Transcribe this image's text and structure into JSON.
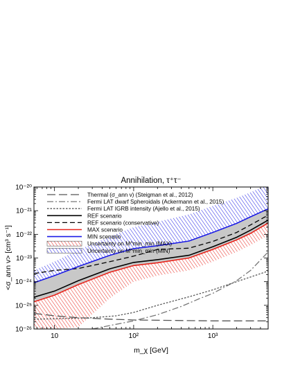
{
  "chart_data": {
    "type": "line",
    "title": "Annihilation, τ⁺τ⁻",
    "xlabel": "m_χ [GeV]",
    "ylabel": "<σ_ann v> [cm³ s⁻¹]",
    "x_scale": "log",
    "y_scale": "log",
    "xlim": [
      5.5,
      5000
    ],
    "ylim": [
      1e-26,
      1e-20
    ],
    "x_ticks": [
      {
        "value": 10,
        "label": "10"
      },
      {
        "value": 100,
        "label": "10²"
      },
      {
        "value": 1000,
        "label": "10³"
      }
    ],
    "y_ticks": [
      {
        "value": 1e-26,
        "label": "10⁻²⁶"
      },
      {
        "value": 1e-25,
        "label": "10⁻²⁵"
      },
      {
        "value": 1e-24,
        "label": "10⁻²⁴"
      },
      {
        "value": 1e-23,
        "label": "10⁻²³"
      },
      {
        "value": 1e-22,
        "label": "10⁻²²"
      },
      {
        "value": 1e-21,
        "label": "10⁻²¹"
      },
      {
        "value": 1e-20,
        "label": "10⁻²⁰"
      }
    ],
    "grid": false,
    "legend_position": "top-left",
    "series": [
      {
        "name": "Thermal (σ_ann v) (Steigman et al., 2012)",
        "style": "long-dash",
        "color": "#555555",
        "x": [
          5.5,
          10,
          20,
          50,
          100,
          300,
          1000,
          5000
        ],
        "y": [
          4.6e-26,
          3.6e-26,
          3e-26,
          2.6e-26,
          2.4e-26,
          2.3e-26,
          2.2e-26,
          2.2e-26
        ]
      },
      {
        "name": "Fermi LAT dwarf Spheroidals (Ackermann et al., 2015)",
        "style": "dash-dot",
        "color": "#777777",
        "x": [
          30,
          50,
          100,
          200,
          400,
          700,
          1000,
          2000,
          3000,
          5000
        ],
        "y": [
          1e-26,
          1.4e-26,
          2.2e-26,
          4e-26,
          9e-26,
          2e-25,
          3.2e-25,
          1.1e-24,
          3e-24,
          1.8e-23
        ]
      },
      {
        "name": "Fermi LAT IGRB intensity (Ajello et al., 2015)",
        "style": "dotted",
        "color": "#555555",
        "x": [
          5.5,
          10,
          30,
          60,
          100,
          200,
          500,
          1000,
          2000,
          5000
        ],
        "y": [
          2.6e-26,
          2.7e-26,
          3e-26,
          3.6e-26,
          5e-26,
          1e-25,
          2.3e-25,
          4.5e-25,
          1e-24,
          2.8e-24
        ]
      },
      {
        "name": "REF scenario",
        "style": "solid",
        "color": "#000000",
        "x": [
          5.5,
          10,
          20,
          50,
          100,
          200,
          500,
          1000,
          2000,
          3000,
          5000
        ],
        "y": [
          2.2e-25,
          4e-25,
          1.1e-24,
          3.5e-24,
          6.5e-24,
          8.5e-24,
          1.3e-23,
          3e-23,
          7.5e-23,
          1.5e-22,
          4e-22
        ]
      },
      {
        "name": "REF scenario (conservative)",
        "style": "dashed",
        "color": "#000000",
        "x": [
          5.5,
          10,
          20,
          50,
          100,
          200,
          500,
          1000,
          2000,
          3000,
          5000
        ],
        "y": [
          2.2e-24,
          3e-24,
          3.6e-24,
          7e-24,
          1.2e-23,
          2.3e-23,
          2.6e-23,
          5e-23,
          1.2e-22,
          2.5e-22,
          6.5e-22
        ]
      },
      {
        "name": "MAX scenario",
        "style": "solid",
        "color": "#e8231a",
        "x": [
          5.5,
          10,
          20,
          50,
          100,
          200,
          500,
          1000,
          2000,
          3000,
          5000
        ],
        "y": [
          1.4e-25,
          2.7e-25,
          7.5e-25,
          2.5e-24,
          4.8e-24,
          6.3e-24,
          1e-23,
          2.3e-23,
          5.8e-23,
          1.1e-22,
          3e-22
        ]
      },
      {
        "name": "MIN scenario",
        "style": "solid",
        "color": "#1a1ae6",
        "x": [
          5.5,
          10,
          20,
          50,
          100,
          200,
          500,
          1000,
          2000,
          3000,
          5000
        ],
        "y": [
          9e-25,
          1.8e-24,
          4.4e-24,
          1.3e-23,
          2.5e-23,
          3.3e-23,
          5.2e-23,
          1.2e-22,
          2.9e-22,
          5.5e-22,
          1.2e-21
        ]
      }
    ],
    "bands": [
      {
        "name": "Uncertainty on M^min_min (MAX)",
        "pattern": "hatch",
        "color": "#e8231a",
        "x": [
          5.5,
          10,
          20,
          50,
          100,
          200,
          500,
          1000,
          2000,
          3000,
          5000
        ],
        "lower": [
          1e-26,
          1e-26,
          1.2e-26,
          2e-25,
          1e-24,
          1.8e-24,
          3e-24,
          7e-24,
          1.8e-23,
          3.5e-23,
          9e-23
        ],
        "upper": [
          1.4e-25,
          2.7e-25,
          7.5e-25,
          2.5e-24,
          4.8e-24,
          6.3e-24,
          1e-23,
          2.3e-23,
          5.8e-23,
          1.1e-22,
          3e-22
        ]
      },
      {
        "name": "Uncertainty on M^min_min (MIN)",
        "pattern": "hatch",
        "color": "#1a1ae6",
        "x": [
          5.5,
          10,
          20,
          50,
          100,
          200,
          500,
          1000,
          2000,
          3000,
          5000
        ],
        "lower": [
          9e-25,
          1.8e-24,
          4.4e-24,
          1.3e-23,
          2.5e-23,
          3.3e-23,
          5.2e-23,
          1.2e-22,
          2.9e-22,
          5.5e-22,
          1.2e-21
        ],
        "upper": [
          3e-24,
          7e-24,
          2.2e-23,
          8e-23,
          2e-22,
          3.4e-22,
          7e-22,
          1.6e-21,
          3.5e-21,
          6e-21,
          1.3e-20
        ]
      },
      {
        "name": "REF–MIN envelope",
        "pattern": "solid",
        "color": "#c8c8c8",
        "x": [
          5.5,
          10,
          20,
          50,
          100,
          200,
          500,
          1000,
          2000,
          3000,
          5000
        ],
        "lower": [
          1.4e-25,
          2.7e-25,
          7.5e-25,
          2.5e-24,
          4.8e-24,
          6.3e-24,
          1e-23,
          2.3e-23,
          5.8e-23,
          1.1e-22,
          3e-22
        ],
        "upper": [
          9e-25,
          1.8e-24,
          4.4e-24,
          1.3e-23,
          2.5e-23,
          3.3e-23,
          5.2e-23,
          1.2e-22,
          2.9e-22,
          5.5e-22,
          1.2e-21
        ]
      }
    ]
  }
}
